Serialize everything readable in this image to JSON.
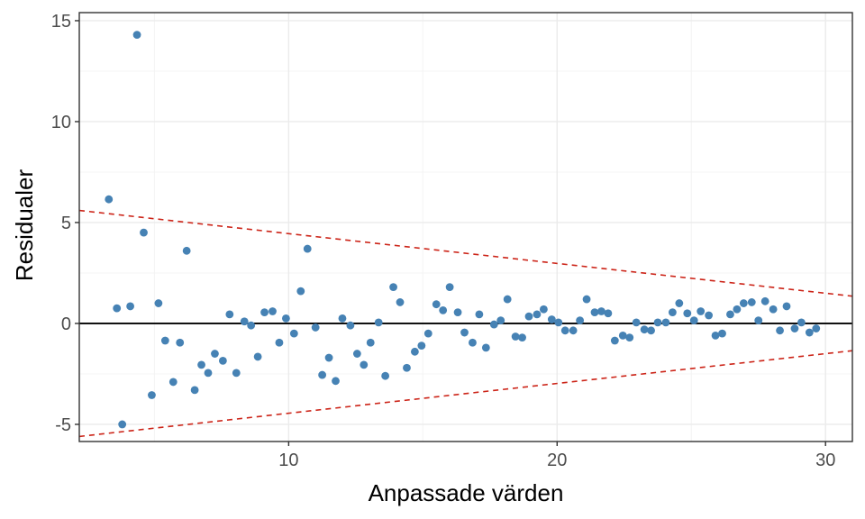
{
  "chart_data": {
    "type": "scatter",
    "title": "",
    "xlabel": "Anpassade värden",
    "ylabel": "Residualer",
    "xlim": [
      2.2,
      31.0
    ],
    "ylim": [
      -5.85,
      15.4
    ],
    "xticks": [
      10,
      20,
      30
    ],
    "yticks": [
      -5,
      0,
      5,
      10,
      15
    ],
    "xtick_labels": [
      "10",
      "20",
      "30"
    ],
    "ytick_labels": [
      "-5",
      "0",
      "5",
      "10",
      "15"
    ],
    "grid": true,
    "legend": "none",
    "colors": {
      "points": "#4682B4",
      "zero_line": "#000000",
      "bounds": "#CC2418",
      "grid_major": "#EBEBEB",
      "grid_minor": "#F4F4F4",
      "panel_border": "#333333"
    },
    "reference_lines": {
      "zero": 0,
      "upper_bound": {
        "x": [
          2.2,
          31.0
        ],
        "y": [
          5.6,
          1.35
        ]
      },
      "lower_bound": {
        "x": [
          2.2,
          31.0
        ],
        "y": [
          -5.6,
          -1.35
        ]
      }
    },
    "points": [
      {
        "x": 3.3,
        "y": 6.15
      },
      {
        "x": 3.6,
        "y": 0.75
      },
      {
        "x": 3.8,
        "y": -5.0
      },
      {
        "x": 4.1,
        "y": 0.85
      },
      {
        "x": 4.35,
        "y": 14.3
      },
      {
        "x": 4.6,
        "y": 4.5
      },
      {
        "x": 4.9,
        "y": -3.55
      },
      {
        "x": 5.15,
        "y": 1.0
      },
      {
        "x": 5.4,
        "y": -0.85
      },
      {
        "x": 5.7,
        "y": -2.9
      },
      {
        "x": 5.95,
        "y": -0.95
      },
      {
        "x": 6.2,
        "y": 3.6
      },
      {
        "x": 6.5,
        "y": -3.3
      },
      {
        "x": 6.75,
        "y": -2.05
      },
      {
        "x": 7.0,
        "y": -2.45
      },
      {
        "x": 7.25,
        "y": -1.5
      },
      {
        "x": 7.55,
        "y": -1.85
      },
      {
        "x": 7.8,
        "y": 0.45
      },
      {
        "x": 8.05,
        "y": -2.45
      },
      {
        "x": 8.35,
        "y": 0.1
      },
      {
        "x": 8.6,
        "y": -0.1
      },
      {
        "x": 8.85,
        "y": -1.65
      },
      {
        "x": 9.1,
        "y": 0.55
      },
      {
        "x": 9.4,
        "y": 0.6
      },
      {
        "x": 9.65,
        "y": -0.95
      },
      {
        "x": 9.9,
        "y": 0.25
      },
      {
        "x": 10.2,
        "y": -0.5
      },
      {
        "x": 10.45,
        "y": 1.6
      },
      {
        "x": 10.7,
        "y": 3.7
      },
      {
        "x": 11.0,
        "y": -0.2
      },
      {
        "x": 11.25,
        "y": -2.55
      },
      {
        "x": 11.5,
        "y": -1.7
      },
      {
        "x": 11.75,
        "y": -2.85
      },
      {
        "x": 12.0,
        "y": 0.25
      },
      {
        "x": 12.3,
        "y": -0.1
      },
      {
        "x": 12.55,
        "y": -1.5
      },
      {
        "x": 12.8,
        "y": -2.05
      },
      {
        "x": 13.05,
        "y": -0.95
      },
      {
        "x": 13.35,
        "y": 0.05
      },
      {
        "x": 13.6,
        "y": -2.6
      },
      {
        "x": 13.9,
        "y": 1.8
      },
      {
        "x": 14.15,
        "y": 1.05
      },
      {
        "x": 14.4,
        "y": -2.2
      },
      {
        "x": 14.7,
        "y": -1.4
      },
      {
        "x": 14.95,
        "y": -1.1
      },
      {
        "x": 15.2,
        "y": -0.5
      },
      {
        "x": 15.5,
        "y": 0.95
      },
      {
        "x": 15.75,
        "y": 0.65
      },
      {
        "x": 16.0,
        "y": 1.8
      },
      {
        "x": 16.3,
        "y": 0.55
      },
      {
        "x": 16.55,
        "y": -0.45
      },
      {
        "x": 16.85,
        "y": -0.95
      },
      {
        "x": 17.1,
        "y": 0.45
      },
      {
        "x": 17.35,
        "y": -1.2
      },
      {
        "x": 17.65,
        "y": -0.05
      },
      {
        "x": 17.9,
        "y": 0.15
      },
      {
        "x": 18.15,
        "y": 1.2
      },
      {
        "x": 18.45,
        "y": -0.65
      },
      {
        "x": 18.7,
        "y": -0.7
      },
      {
        "x": 18.95,
        "y": 0.35
      },
      {
        "x": 19.25,
        "y": 0.45
      },
      {
        "x": 19.5,
        "y": 0.7
      },
      {
        "x": 19.8,
        "y": 0.2
      },
      {
        "x": 20.05,
        "y": 0.05
      },
      {
        "x": 20.3,
        "y": -0.35
      },
      {
        "x": 20.6,
        "y": -0.35
      },
      {
        "x": 20.85,
        "y": 0.15
      },
      {
        "x": 21.1,
        "y": 1.2
      },
      {
        "x": 21.4,
        "y": 0.55
      },
      {
        "x": 21.65,
        "y": 0.6
      },
      {
        "x": 21.9,
        "y": 0.5
      },
      {
        "x": 22.15,
        "y": -0.85
      },
      {
        "x": 22.45,
        "y": -0.6
      },
      {
        "x": 22.7,
        "y": -0.7
      },
      {
        "x": 22.95,
        "y": 0.05
      },
      {
        "x": 23.25,
        "y": -0.3
      },
      {
        "x": 23.5,
        "y": -0.35
      },
      {
        "x": 23.75,
        "y": 0.05
      },
      {
        "x": 24.05,
        "y": 0.05
      },
      {
        "x": 24.3,
        "y": 0.55
      },
      {
        "x": 24.55,
        "y": 1.0
      },
      {
        "x": 24.85,
        "y": 0.5
      },
      {
        "x": 25.1,
        "y": 0.15
      },
      {
        "x": 25.35,
        "y": 0.6
      },
      {
        "x": 25.65,
        "y": 0.4
      },
      {
        "x": 25.9,
        "y": -0.6
      },
      {
        "x": 26.15,
        "y": -0.5
      },
      {
        "x": 26.45,
        "y": 0.45
      },
      {
        "x": 26.7,
        "y": 0.7
      },
      {
        "x": 26.95,
        "y": 1.0
      },
      {
        "x": 27.25,
        "y": 1.05
      },
      {
        "x": 27.5,
        "y": 0.15
      },
      {
        "x": 27.75,
        "y": 1.1
      },
      {
        "x": 28.05,
        "y": 0.7
      },
      {
        "x": 28.3,
        "y": -0.35
      },
      {
        "x": 28.55,
        "y": 0.85
      },
      {
        "x": 28.85,
        "y": -0.25
      },
      {
        "x": 29.1,
        "y": 0.05
      },
      {
        "x": 29.4,
        "y": -0.45
      },
      {
        "x": 29.65,
        "y": -0.25
      }
    ]
  }
}
